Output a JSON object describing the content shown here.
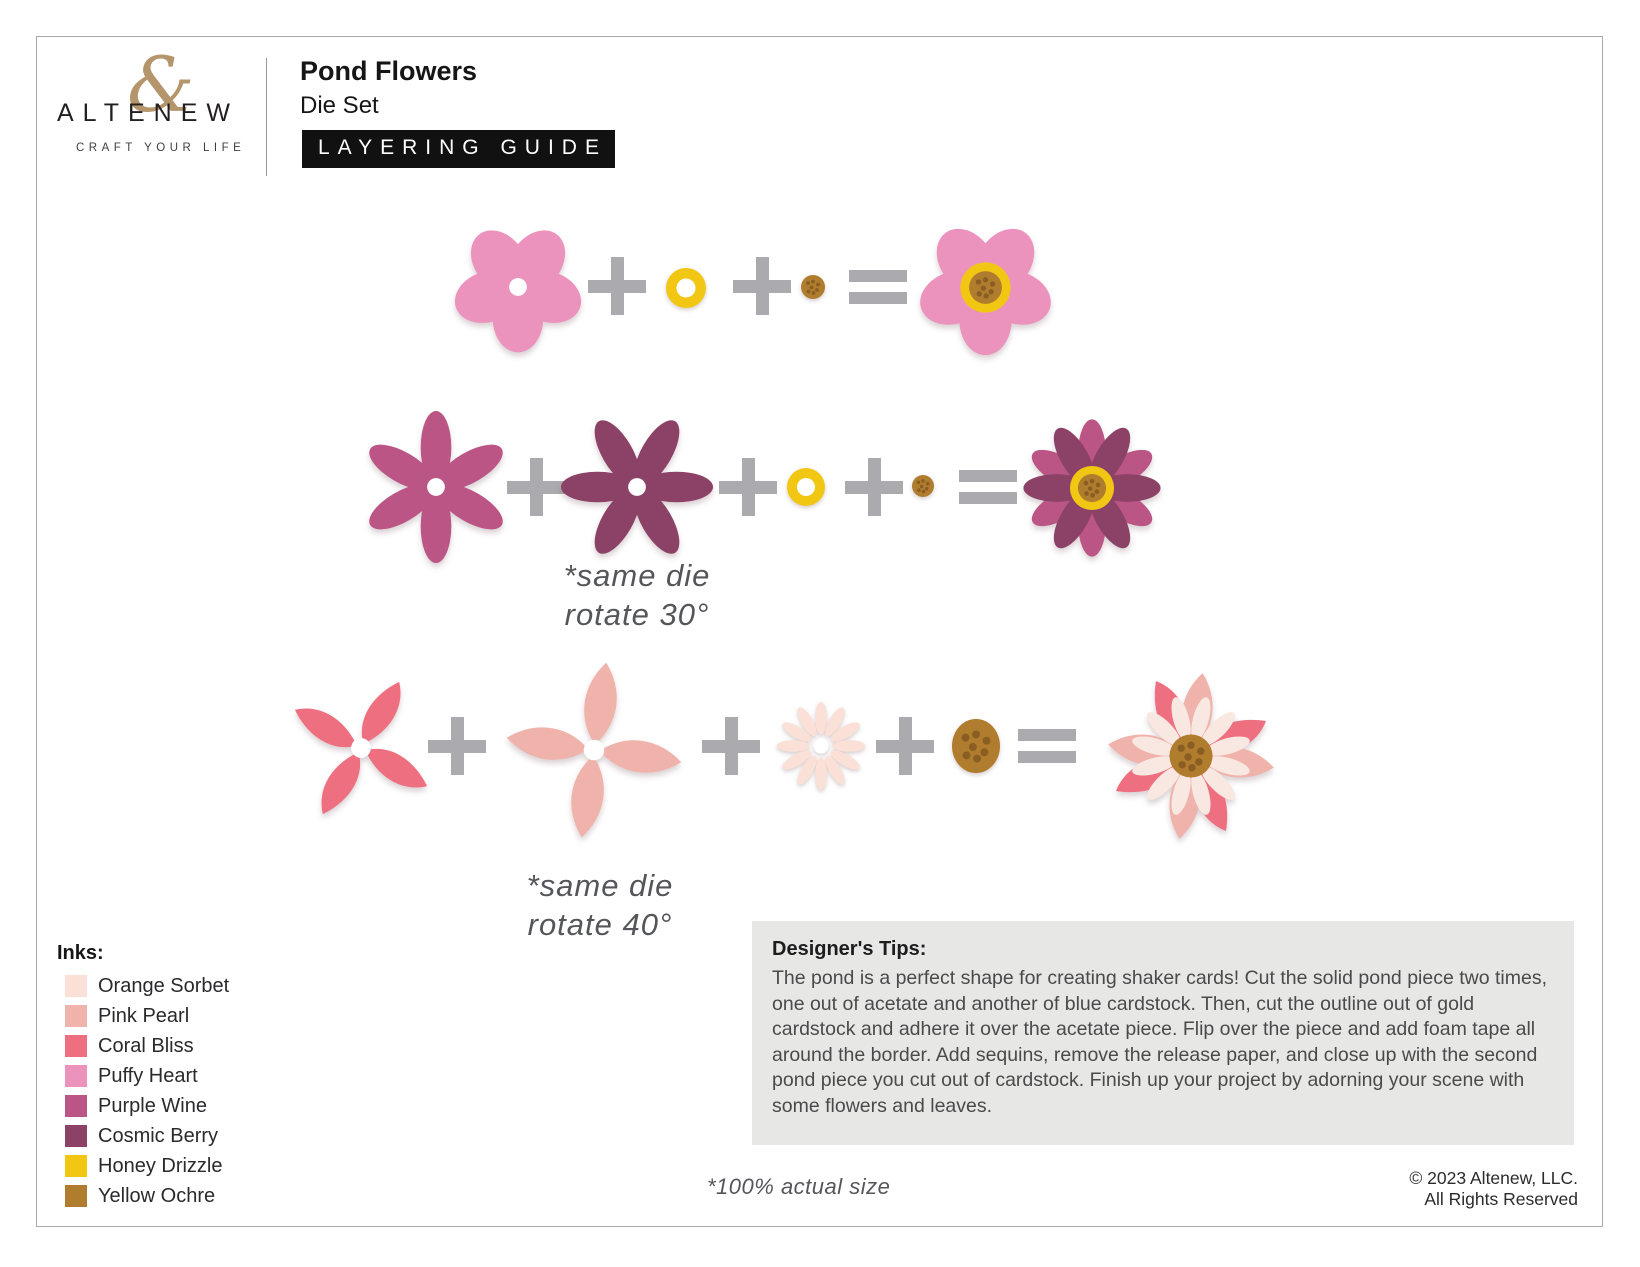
{
  "header": {
    "logo": {
      "name": "ALTENEW",
      "ampersand": "&",
      "tagline": "CRAFT YOUR LIFE"
    },
    "product_title": "Pond Flowers",
    "product_subtitle": "Die Set",
    "badge_label": "LAYERING GUIDE"
  },
  "diagram": {
    "row2_note": [
      "*same die",
      "rotate 30°"
    ],
    "row3_note": [
      "*same die",
      "rotate 40°"
    ]
  },
  "inks": {
    "heading": "Inks:",
    "items": [
      {
        "name": "Orange Sorbet",
        "color": "#FAE0D6"
      },
      {
        "name": "Pink Pearl",
        "color": "#F0B3AB"
      },
      {
        "name": "Coral Bliss",
        "color": "#EE6F80"
      },
      {
        "name": "Puffy Heart",
        "color": "#EC93BD"
      },
      {
        "name": "Purple Wine",
        "color": "#BA5585"
      },
      {
        "name": "Cosmic Berry",
        "color": "#8C4167"
      },
      {
        "name": "Honey Drizzle",
        "color": "#F2C713"
      },
      {
        "name": "Yellow Ochre",
        "color": "#B07C2E"
      }
    ]
  },
  "tips": {
    "heading": "Designer's Tips:",
    "body": "The pond is a perfect shape for creating shaker cards! Cut the solid pond piece two times, one out of acetate and another of blue cardstock. Then, cut the outline out of gold cardstock and adhere it over the acetate piece. Flip over the piece and add foam tape all around the border. Add sequins, remove the release paper, and close up with the second pond piece you cut out of cardstock. Finish up your project by adorning your scene with some flowers and leaves.",
    "note": ""
  },
  "footnote": "*100% actual size",
  "copyright": {
    "line1": "© 2023 Altenew, LLC.",
    "line2": "All Rights Reserved"
  },
  "colors": {
    "orange_sorbet": "#FAE0D6",
    "fringe_light": "#F8E8E1",
    "pink_pearl": "#F0B3AB",
    "coral_bliss": "#EE6F80",
    "puffy_heart": "#EC93BD",
    "purple_wine": "#BA5585",
    "cosmic_berry": "#8C4167",
    "honey_drizzle": "#F2C713",
    "yellow_ochre": "#B07C2E",
    "ochre_dot": "#8A5E22",
    "operator_gray": "#ABABAF",
    "tips_bg": "#E7E7E5",
    "frame_border": "#A9A9A9",
    "badge_bg": "#111111",
    "badge_text": "#FFFFFF",
    "logo_gold": "#B5956B"
  }
}
